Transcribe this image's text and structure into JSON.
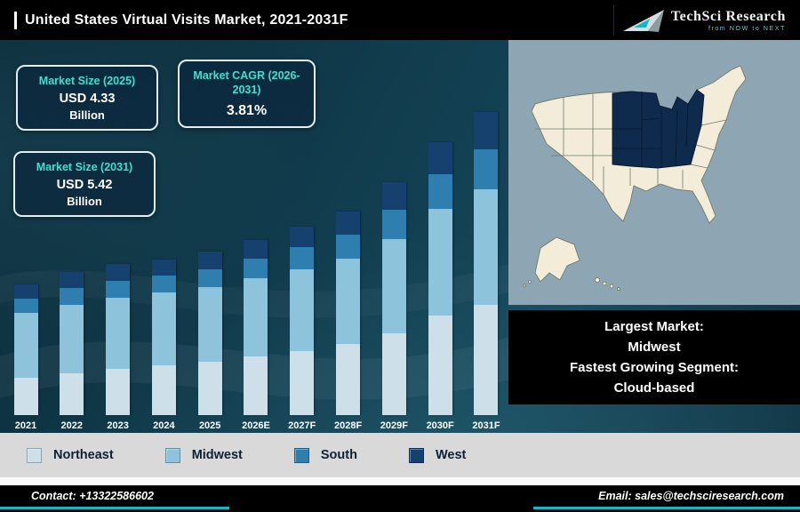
{
  "header": {
    "title": "United States Virtual Visits Market, 2021-2031F",
    "logo_name": "TechSci Research",
    "logo_tagline": "from NOW to NEXT"
  },
  "info_boxes": [
    {
      "label": "Market Size (2025)",
      "value": "USD 4.33",
      "unit": "Billion"
    },
    {
      "label": "Market CAGR (2026-2031)",
      "value": "3.81%"
    },
    {
      "label": "Market Size (2031)",
      "value": "USD 5.42",
      "unit": "Billion"
    }
  ],
  "chart_data": {
    "type": "bar",
    "stacked": true,
    "title": "United States Virtual Visits Market, 2021-2031F",
    "categories": [
      "2021",
      "2022",
      "2023",
      "2024",
      "2025",
      "2026E",
      "2027F",
      "2028F",
      "2029F",
      "2030F",
      "2031F"
    ],
    "series": [
      {
        "name": "Northeast",
        "color": "#cde0ea",
        "values": [
          42,
          47,
          52,
          56,
          60,
          66,
          72,
          80,
          92,
          112,
          124
        ]
      },
      {
        "name": "Midwest",
        "color": "#8ec3dc",
        "values": [
          73,
          77,
          80,
          82,
          84,
          88,
          92,
          96,
          106,
          120,
          130
        ]
      },
      {
        "name": "South",
        "color": "#2e7fb0",
        "values": [
          16,
          19,
          19,
          19,
          20,
          22,
          25,
          27,
          33,
          39,
          45
        ]
      },
      {
        "name": "West",
        "color": "#16406e",
        "values": [
          16,
          18,
          19,
          18,
          20,
          21,
          23,
          26,
          31,
          36,
          42
        ]
      }
    ],
    "units": "relative bar height in px (no y-axis shown; chart is illustrative)",
    "annotations": [
      "Market Size (2025): USD 4.33 Billion",
      "Market CAGR (2026-2031): 3.81%",
      "Market Size (2031): USD 5.42 Billion"
    ],
    "xlabel": "",
    "ylabel": "",
    "grid": false,
    "legend_position": "bottom"
  },
  "map": {
    "highlight_region": "Midwest",
    "state_fill": "#f2ecd9",
    "highlight_fill": "#0e2a4d",
    "panel_bg": "#8ea6b4"
  },
  "callout": {
    "lines": [
      "Largest Market:",
      "Midwest",
      "Fastest Growing Segment:",
      "Cloud-based"
    ]
  },
  "legend": {
    "items": [
      {
        "label": "Northeast",
        "color": "#cde0ea"
      },
      {
        "label": "Midwest",
        "color": "#8ec3dc"
      },
      {
        "label": "South",
        "color": "#2e7fb0"
      },
      {
        "label": "West",
        "color": "#16406e"
      }
    ]
  },
  "footer": {
    "contact": "Contact: +13322586602",
    "email": "Email: sales@techsciresearch.com"
  },
  "colors": {
    "accent_teal": "#3fe0d0",
    "underline_teal": "#17b6c6",
    "legend_bg": "#d9d9d9",
    "panel_bg": "#8ea6b4",
    "state_fill": "#f2ecd9",
    "highlight_fill": "#0e2a4d"
  }
}
